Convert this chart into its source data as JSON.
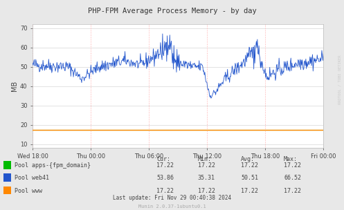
{
  "title": "PHP-FPM Average Process Memory - by day",
  "ylabel": "MB",
  "background_color": "#e8e8e8",
  "plot_bg_color": "#ffffff",
  "grid_h_color": "#dddddd",
  "grid_v_color": "#ffaaaa",
  "ylim": [
    8,
    72
  ],
  "yticks": [
    10,
    20,
    30,
    40,
    50,
    60,
    70
  ],
  "xtick_labels": [
    "Wed 18:00",
    "Thu 00:00",
    "Thu 06:00",
    "Thu 12:00",
    "Thu 18:00",
    "Fri 00:00"
  ],
  "xtick_positions": [
    0,
    1,
    2,
    3,
    4,
    5
  ],
  "line_color_web41": "#2255cc",
  "line_color_www": "#ff8800",
  "line_color_apps": "#00bb00",
  "www_value": 17.22,
  "apps_value": 17.22,
  "legend_entries": [
    {
      "label": "Pool apps-{fpm_domain}",
      "color": "#00bb00",
      "cur": "17.22",
      "min": "17.22",
      "avg": "17.22",
      "max": "17.22"
    },
    {
      "label": "Pool web41",
      "color": "#2255cc",
      "cur": "53.86",
      "min": "35.31",
      "avg": "50.51",
      "max": "66.52"
    },
    {
      "label": "Pool www",
      "color": "#ff8800",
      "cur": "17.22",
      "min": "17.22",
      "avg": "17.22",
      "max": "17.22"
    }
  ],
  "footer": "Last update: Fri Nov 29 00:40:38 2024",
  "munin_version": "Munin 2.0.37-1ubuntu0.1",
  "rrdtool_label": "RRDTOOL / TOBI OETIKER"
}
